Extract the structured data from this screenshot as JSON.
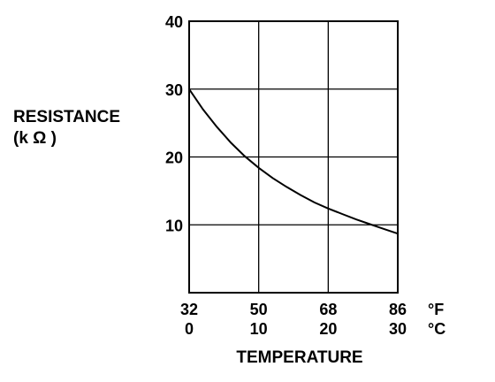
{
  "chart_data": {
    "type": "line",
    "xlabel": "TEMPERATURE",
    "ylabel_line1": "RESISTANCE",
    "ylabel_line2": "(k Ω )",
    "x_ticks_f": [
      "32",
      "50",
      "68",
      "86"
    ],
    "x_ticks_c": [
      "0",
      "10",
      "20",
      "30"
    ],
    "x_unit_f": "°F",
    "x_unit_c": "°C",
    "y_ticks": [
      "40",
      "30",
      "20",
      "10"
    ],
    "xlim_c": [
      0,
      30
    ],
    "ylim": [
      0,
      40
    ],
    "grid": true,
    "series": [
      {
        "x": [
          0,
          2,
          4,
          6,
          8,
          10,
          12,
          14,
          16,
          18,
          20,
          22,
          24,
          26,
          28,
          30
        ],
        "y": [
          30.0,
          27.0,
          24.4,
          22.1,
          20.1,
          18.4,
          16.9,
          15.6,
          14.4,
          13.3,
          12.4,
          11.6,
          10.8,
          10.1,
          9.4,
          8.7
        ]
      }
    ]
  }
}
